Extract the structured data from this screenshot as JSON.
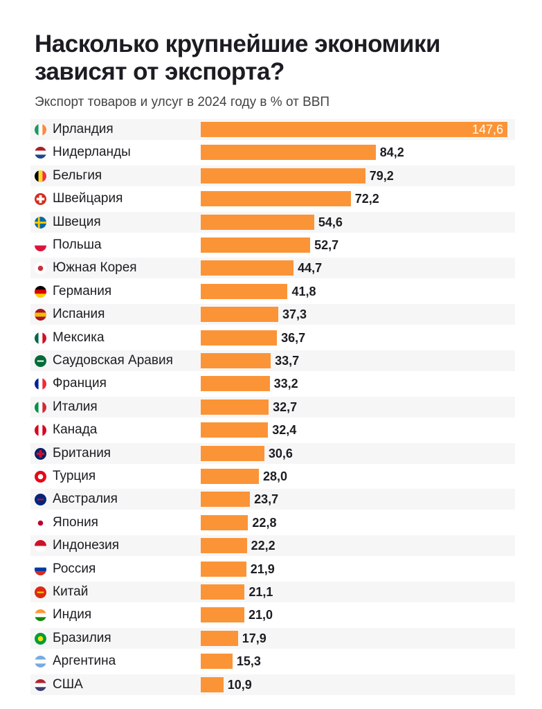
{
  "title": "Насколько крупнейшие экономики зависят от экспорта?",
  "subtitle": "Экспорт товаров и улсуг в 2024 году в % от ВВП",
  "colors": {
    "bar": "#fb9437",
    "text": "#1c1c22"
  },
  "chart_data": {
    "type": "bar",
    "orientation": "horizontal",
    "title": "Насколько крупнейшие экономики зависят от экспорта?",
    "subtitle": "Экспорт товаров и улсуг в 2024 году в % от ВВП",
    "xlabel": "",
    "ylabel": "",
    "xlim": [
      0,
      147.6
    ],
    "grid": false,
    "categories": [
      "Ирландия",
      "Нидерланды",
      "Бельгия",
      "Швейцария",
      "Швеция",
      "Польша",
      "Южная Корея",
      "Германия",
      "Испания",
      "Мексика",
      "Саудовская Аравия",
      "Франция",
      "Италия",
      "Канада",
      "Британия",
      "Турция",
      "Австралия",
      "Япония",
      "Индонезия",
      "Россия",
      "Китай",
      "Индия",
      "Бразилия",
      "Аргентина",
      "США"
    ],
    "values": [
      147.6,
      84.2,
      79.2,
      72.2,
      54.6,
      52.7,
      44.7,
      41.8,
      37.3,
      36.7,
      33.7,
      33.2,
      32.7,
      32.4,
      30.6,
      28.0,
      23.7,
      22.8,
      22.2,
      21.9,
      21.1,
      21.0,
      17.9,
      15.3,
      10.9
    ],
    "value_labels": [
      "147,6",
      "84,2",
      "79,2",
      "72,2",
      "54,6",
      "52,7",
      "44,7",
      "41,8",
      "37,3",
      "36,7",
      "33,7",
      "33,2",
      "32,7",
      "32,4",
      "30,6",
      "28,0",
      "23,7",
      "22,8",
      "22,2",
      "21,9",
      "21,1",
      "21,0",
      "17,9",
      "15,3",
      "10,9"
    ],
    "flag_icons": [
      {
        "type": "v",
        "colors": [
          "#169b62",
          "#ffffff",
          "#ff883e"
        ]
      },
      {
        "type": "h",
        "colors": [
          "#ae1c28",
          "#ffffff",
          "#21468b"
        ]
      },
      {
        "type": "v",
        "colors": [
          "#000000",
          "#fdda24",
          "#ef3340"
        ]
      },
      {
        "type": "cross",
        "colors": [
          "#d52b1e",
          "#ffffff"
        ]
      },
      {
        "type": "nordic",
        "colors": [
          "#006aa7",
          "#fecc00"
        ]
      },
      {
        "type": "h2",
        "colors": [
          "#ffffff",
          "#dc143c"
        ]
      },
      {
        "type": "dot",
        "colors": [
          "#ffffff",
          "#cd2e3a"
        ]
      },
      {
        "type": "h",
        "colors": [
          "#000000",
          "#dd0000",
          "#ffce00"
        ]
      },
      {
        "type": "h",
        "colors": [
          "#aa151b",
          "#f1bf00",
          "#aa151b"
        ]
      },
      {
        "type": "v",
        "colors": [
          "#006847",
          "#ffffff",
          "#ce1126"
        ]
      },
      {
        "type": "solid",
        "colors": [
          "#006c35",
          "#ffffff"
        ]
      },
      {
        "type": "v",
        "colors": [
          "#002395",
          "#ffffff",
          "#ed2939"
        ]
      },
      {
        "type": "v",
        "colors": [
          "#009246",
          "#ffffff",
          "#ce2b37"
        ]
      },
      {
        "type": "v",
        "colors": [
          "#d80621",
          "#ffffff",
          "#d80621"
        ]
      },
      {
        "type": "cross",
        "colors": [
          "#012169",
          "#c8102e"
        ]
      },
      {
        "type": "dot",
        "colors": [
          "#e30a17",
          "#ffffff"
        ]
      },
      {
        "type": "solid",
        "colors": [
          "#00247d",
          "#ff0000"
        ]
      },
      {
        "type": "dot",
        "colors": [
          "#ffffff",
          "#bc002d"
        ]
      },
      {
        "type": "h2",
        "colors": [
          "#ce1126",
          "#ffffff"
        ]
      },
      {
        "type": "h",
        "colors": [
          "#ffffff",
          "#0039a6",
          "#d52b1e"
        ]
      },
      {
        "type": "solid",
        "colors": [
          "#de2910",
          "#ffde00"
        ]
      },
      {
        "type": "h",
        "colors": [
          "#ff9933",
          "#ffffff",
          "#138808"
        ]
      },
      {
        "type": "dot",
        "colors": [
          "#009c3b",
          "#ffdf00"
        ]
      },
      {
        "type": "h",
        "colors": [
          "#74acdf",
          "#ffffff",
          "#74acdf"
        ]
      },
      {
        "type": "h",
        "colors": [
          "#b22234",
          "#ffffff",
          "#3c3b6e"
        ]
      }
    ]
  }
}
